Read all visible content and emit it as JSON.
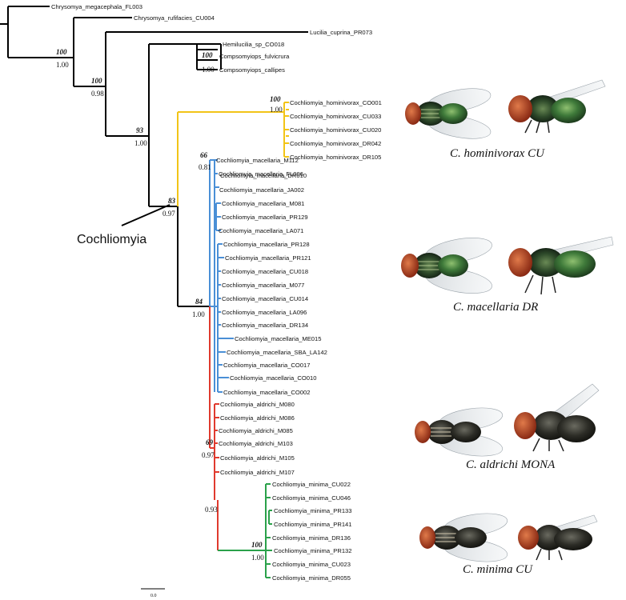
{
  "clade_label": "Cochliomyia",
  "scale_label": "0.0",
  "colors": {
    "outgroup": "#000000",
    "hominivorax": "#f2c417",
    "macellaria": "#4a8fd6",
    "aldrichi": "#e03a2e",
    "minima": "#2aa14a"
  },
  "outgroup_taxa": [
    "Chrysomya_megacephala_FL003",
    "Chrysomya_rufifacies_CU004",
    "Lucilia_cuprina_PR073",
    "Hemilucilia_sp_CO018",
    "Compsomyiops_fulvicrura",
    "Compsomyiops_callipes"
  ],
  "hominivorax_taxa": [
    "Cochliomyia_hominivorax_CO001",
    "Cochliomyia_hominivorax_CU033",
    "Cochliomyia_hominivorax_CU020",
    "Cochliomyia_hominivorax_DR042",
    "Cochliomyia_hominivorax_DR105"
  ],
  "macellaria_taxa": [
    "Cochliomyia_macellaria_M112",
    "Cochliomyia_macellaria_FL006",
    "Cochliomyia_macellaria_DR010",
    "Cochliomyia_macellaria_JA002",
    "Cochliomyia_macellaria_M081",
    "Cochliomyia_macellaria_PR129",
    "Cochliomyia_macellaria_LA071",
    "Cochliomyia_macellaria_PR128",
    "Cochliomyia_macellaria_PR121",
    "Cochliomyia_macellaria_CU018",
    "Cochliomyia_macellaria_M077",
    "Cochliomyia_macellaria_CU014",
    "Cochliomyia_macellaria_LA096",
    "Cochliomyia_macellaria_DR134",
    "Cochliomyia_macellaria_ME015",
    "Cochliomyia_macellaria_SBA_LA142",
    "Cochliomyia_macellaria_CO017",
    "Cochliomyia_macellaria_CO010",
    "Cochliomyia_macellaria_CO002"
  ],
  "aldrichi_taxa": [
    "Cochliomyia_aldrichi_M080",
    "Cochliomyia_aldrichi_M086",
    "Cochliomyia_aldrichi_M085",
    "Cochliomyia_aldrichi_M103",
    "Cochliomyia_aldrichi_M105",
    "Cochliomyia_aldrichi_M107"
  ],
  "minima_taxa": [
    "Cochliomyia_minima_CU022",
    "Cochliomyia_minima_CU046",
    "Cochliomyia_minima_PR133",
    "Cochliomyia_minima_PR141",
    "Cochliomyia_minima_DR136",
    "Cochliomyia_minima_PR132",
    "Cochliomyia_minima_CU023",
    "Cochliomyia_minima_DR055"
  ],
  "node_support": {
    "compsomyiops_bs": "100",
    "compsomyiops_pp": "1.00",
    "lucilia_bs": "100",
    "lucilia_pp": "1.00",
    "hemilucilia_bs": "100",
    "hemilucilia_pp": "0.98",
    "ingroup_bs": "93",
    "ingroup_pp": "1.00",
    "hominivorax_bs": "100",
    "hominivorax_pp": "1.00",
    "cochliomyia_bs": "83",
    "cochliomyia_pp": "0.97",
    "macellaria_bs": "66",
    "macellaria_pp": "0.81",
    "rest_bs": "84",
    "rest_pp": "1.00",
    "aldrichi_bs": "69",
    "aldrichi_pp": "0.97",
    "aldmin_pp": "0.93",
    "minima_bs": "100",
    "minima_pp": "1.00"
  },
  "photo_captions": [
    "C. hominivorax CU",
    "C. macellaria DR",
    "C. aldrichi MONA",
    "C. minima CU"
  ]
}
